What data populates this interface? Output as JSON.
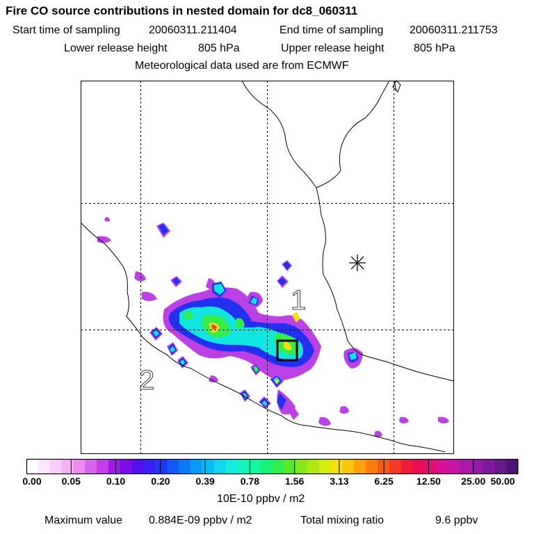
{
  "header": {
    "title": "Fire CO source contributions in nested domain for dc8_060311",
    "start_label": "Start time of sampling",
    "start_value": "20060311.211404",
    "end_label": "End time of sampling",
    "end_value": "20060311.211753",
    "lower_label": "Lower release height",
    "lower_value": "805 hPa",
    "upper_label": "Upper release height",
    "upper_value": "805 hPa",
    "met_text": "Meteorological data used are from ECMWF"
  },
  "map": {
    "markers": [
      {
        "label": "1",
        "symbol": "box"
      },
      {
        "label": "2",
        "symbol": "none"
      }
    ],
    "asterisk": "*"
  },
  "colorbar": {
    "ticks": [
      "0.00",
      "0.05",
      "0.10",
      "0.20",
      "0.39",
      "0.78",
      "1.56",
      "3.13",
      "6.25",
      "12.50",
      "25.00",
      "50.00"
    ],
    "units": "10E-10 ppbv / m2",
    "colors": [
      "#ffffff",
      "#fde7fd",
      "#f9cdf9",
      "#f4b2f5",
      "#ea8cf0",
      "#d964ec",
      "#c23ee8",
      "#a019e6",
      "#7a0fea",
      "#5510ee",
      "#3a1ef2",
      "#2236f5",
      "#1257f8",
      "#0a79fa",
      "#089bfa",
      "#0bbbf7",
      "#10d6f0",
      "#13ecdf",
      "#10f5c0",
      "#10f79d",
      "#18f275",
      "#30ee4e",
      "#56ea2e",
      "#84e81a",
      "#b0e813",
      "#d8ea10",
      "#f3e10e",
      "#fbc40d",
      "#fba10d",
      "#fb7c10",
      "#f95a17",
      "#f53a25",
      "#f01c3b",
      "#ea0e59",
      "#e20d76",
      "#d81091",
      "#c516a4",
      "#ae17ad",
      "#961aa8",
      "#7e1b9c",
      "#66198a",
      "#4f1472"
    ]
  },
  "footer": {
    "max_label": "Maximum value",
    "max_value": "0.884E-09 ppbv / m2",
    "total_label": "Total mixing ratio",
    "total_value": "9.6 ppbv"
  }
}
